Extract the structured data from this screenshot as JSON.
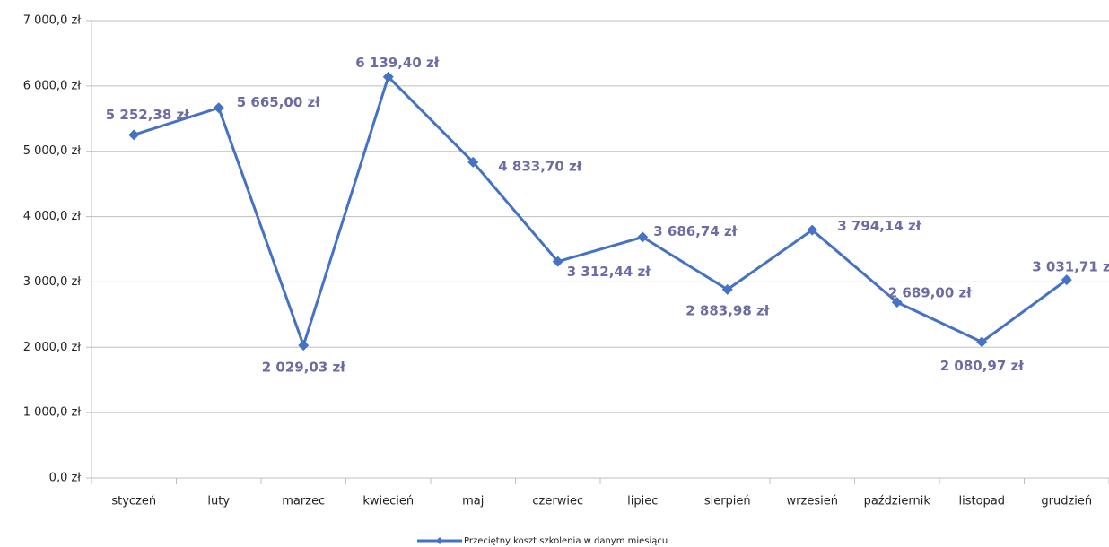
{
  "chart_data": {
    "type": "line",
    "categories": [
      "styczeń",
      "luty",
      "marzec",
      "kwiecień",
      "maj",
      "czerwiec",
      "lipiec",
      "sierpień",
      "wrzesień",
      "październik",
      "listopad",
      "grudzień"
    ],
    "series": [
      {
        "name": "Przeciętny koszt szkolenia w danym miesiącu",
        "color": "#4472c4",
        "values": [
          5252.38,
          5665.0,
          2029.03,
          6139.4,
          4833.7,
          3312.44,
          3686.74,
          2883.98,
          3794.14,
          2689.0,
          2080.97,
          3031.71
        ],
        "value_labels": [
          "5 252,38 zł",
          "5 665,00 zł",
          "2 029,03 zł",
          "6 139,40 zł",
          "4 833,70 zł",
          "3 312,44 zł",
          "3 686,74 zł",
          "2 883,98 zł",
          "3 794,14 zł",
          "2 689,00 zł",
          "2 080,97 zł",
          "3 031,71 zł"
        ]
      }
    ],
    "ylim": [
      0,
      7000
    ],
    "yticks": [
      {
        "value": 0,
        "label": "0,0 zł"
      },
      {
        "value": 1000,
        "label": "1 000,0 zł"
      },
      {
        "value": 2000,
        "label": "2 000,0 zł"
      },
      {
        "value": 3000,
        "label": "3 000,0 zł"
      },
      {
        "value": 4000,
        "label": "4 000,0 zł"
      },
      {
        "value": 5000,
        "label": "5 000,0 zł"
      },
      {
        "value": 6000,
        "label": "6 000,0 zł"
      },
      {
        "value": 7000,
        "label": "7 000,0 zł"
      }
    ],
    "grid": true,
    "legend": "bottom"
  }
}
